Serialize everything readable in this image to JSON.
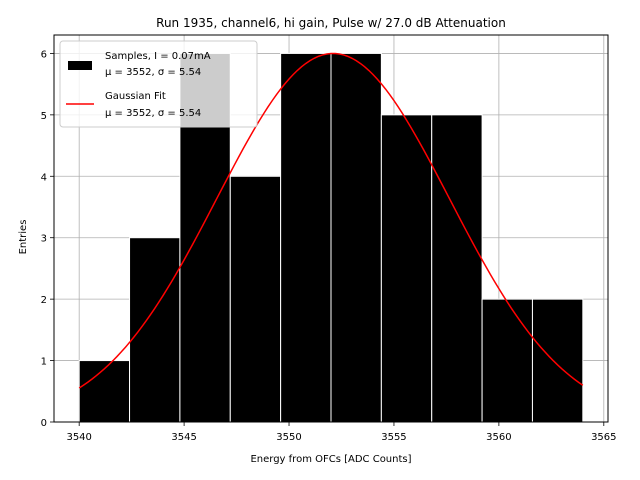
{
  "chart_data": {
    "type": "bar",
    "title": "Run 1935, channel6, hi gain, Pulse w/ 27.0 dB Attenuation",
    "xlabel": "Energy from OFCs [ADC Counts]",
    "ylabel": "Entries",
    "xlim": [
      3538.8,
      3565.2
    ],
    "ylim": [
      0,
      6.3
    ],
    "xticks": [
      3540,
      3545,
      3550,
      3555,
      3560,
      3565
    ],
    "yticks": [
      0,
      1,
      2,
      3,
      4,
      5,
      6
    ],
    "grid": true,
    "bins": [
      {
        "x0": 3540.0,
        "x1": 3542.4,
        "count": 1
      },
      {
        "x0": 3542.4,
        "x1": 3544.8,
        "count": 3
      },
      {
        "x0": 3544.8,
        "x1": 3547.2,
        "count": 6
      },
      {
        "x0": 3547.2,
        "x1": 3549.6,
        "count": 4
      },
      {
        "x0": 3549.6,
        "x1": 3552.0,
        "count": 6
      },
      {
        "x0": 3552.0,
        "x1": 3554.4,
        "count": 6
      },
      {
        "x0": 3554.4,
        "x1": 3556.8,
        "count": 5
      },
      {
        "x0": 3556.8,
        "x1": 3559.2,
        "count": 5
      },
      {
        "x0": 3559.2,
        "x1": 3561.6,
        "count": 2
      },
      {
        "x0": 3561.6,
        "x1": 3564.0,
        "count": 2
      }
    ],
    "fit": {
      "name": "Gaussian Fit",
      "mu": 3552.1,
      "sigma": 5.54,
      "amplitude": 6.0,
      "x_range": [
        3540.0,
        3564.0
      ],
      "color": "#ff0000"
    },
    "bar_color": "#000000",
    "bar_edge_color": "#ffffff",
    "legend": {
      "position": "upper-left",
      "entries": [
        {
          "kind": "patch",
          "line1": "Samples, I = 0.07mA",
          "line2": "μ = 3552, σ = 5.54"
        },
        {
          "kind": "line",
          "line1": "Gaussian Fit",
          "line2": "μ = 3552, σ = 5.54"
        }
      ]
    }
  }
}
